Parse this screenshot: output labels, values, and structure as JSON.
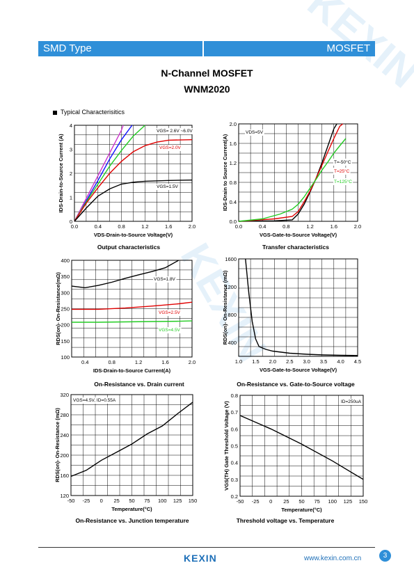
{
  "header": {
    "left": "SMD Type",
    "right": "MOSFET"
  },
  "title": {
    "line1": "N-Channel MOSFET",
    "line2": "WNM2020"
  },
  "section": "Typical  Characterisitics",
  "footer": {
    "logo": "KEXIN",
    "url": "www.kexin.com.cn",
    "page": "3"
  },
  "watermark": "KEXIN",
  "colors": {
    "banner": "#2f8fd8",
    "black": "#000000",
    "red": "#e00000",
    "green": "#22cc22",
    "blue": "#1010ff",
    "magenta": "#cc33cc"
  },
  "captions": {
    "c1": "Output characteristics",
    "c2": "Transfer characteristics",
    "c3": "On-Resistance vs. Drain current",
    "c4": "On-Resistance vs. Gate-to-Source voltage",
    "c5": "On-Resistance vs. Junction temperature",
    "c6": "Threshold voltage vs. Temperature"
  },
  "chart_data": [
    {
      "type": "line",
      "xlabel": "VDS-Drain-to-Source Voltage(V)",
      "ylabel": "IDS-Drain-to-Source Current (A)",
      "xlim": [
        0,
        2.0
      ],
      "ylim": [
        0,
        4
      ],
      "xticks": [
        "0.0",
        "0.4",
        "0.8",
        "1.2",
        "1.6",
        "2.0"
      ],
      "yticks": [
        "0",
        "1",
        "2",
        "3",
        "4"
      ],
      "series": [
        {
          "name": "VGS= 2.6V ~6.0V",
          "color": "#1010ff",
          "x": [
            0,
            0.2,
            0.4,
            0.6,
            0.8,
            0.98
          ],
          "y": [
            0,
            0.85,
            1.7,
            2.6,
            3.4,
            4
          ]
        },
        {
          "name": "",
          "color": "#cc33cc",
          "x": [
            0,
            0.2,
            0.4,
            0.6,
            0.8,
            0.83
          ],
          "y": [
            0,
            0.95,
            1.9,
            2.85,
            3.8,
            4
          ]
        },
        {
          "name": "",
          "color": "#22cc22",
          "x": [
            0,
            0.2,
            0.4,
            0.6,
            0.8,
            1.0,
            1.2
          ],
          "y": [
            0,
            0.8,
            1.55,
            2.3,
            2.95,
            3.55,
            4
          ]
        },
        {
          "name": "VGS=2.0V",
          "color": "#e00000",
          "x": [
            0,
            0.2,
            0.4,
            0.6,
            0.8,
            1.0,
            1.2,
            1.4,
            1.6,
            2.0
          ],
          "y": [
            0,
            0.75,
            1.4,
            2.0,
            2.5,
            2.9,
            3.15,
            3.3,
            3.38,
            3.4
          ]
        },
        {
          "name": "VGS=1.5V",
          "color": "#000000",
          "x": [
            0,
            0.2,
            0.4,
            0.6,
            0.8,
            1.0,
            1.2,
            1.6,
            2.0
          ],
          "y": [
            0,
            0.55,
            1.05,
            1.35,
            1.55,
            1.63,
            1.67,
            1.7,
            1.72
          ]
        }
      ]
    },
    {
      "type": "line",
      "xlabel": "VGS-Gate-to-Source Voltage(V)",
      "ylabel": "IDS-Drain to Source Current(A)",
      "xlim": [
        0,
        2.0
      ],
      "ylim": [
        0,
        2.0
      ],
      "xticks": [
        "0.0",
        "0.4",
        "0.8",
        "1.2",
        "1.6",
        "2.0"
      ],
      "yticks": [
        "0.0",
        "0.4",
        "0.8",
        "1.2",
        "1.6",
        "2.0"
      ],
      "annotation": "VDS=5V",
      "series": [
        {
          "name": "T=-50°C",
          "color": "#000000",
          "x": [
            0,
            0.6,
            0.9,
            1.0,
            1.1,
            1.2,
            1.3,
            1.4,
            1.5,
            1.6,
            1.65
          ],
          "y": [
            0,
            0.01,
            0.03,
            0.15,
            0.35,
            0.6,
            0.88,
            1.2,
            1.55,
            1.9,
            2.0
          ]
        },
        {
          "name": "T=25°C",
          "color": "#e00000",
          "x": [
            0,
            0.6,
            0.9,
            1.0,
            1.1,
            1.2,
            1.3,
            1.4,
            1.5,
            1.6,
            1.7,
            1.75
          ],
          "y": [
            0,
            0.05,
            0.1,
            0.2,
            0.4,
            0.62,
            0.88,
            1.15,
            1.43,
            1.7,
            1.95,
            2.0
          ]
        },
        {
          "name": "T=125°C",
          "color": "#22cc22",
          "x": [
            0,
            0.4,
            0.7,
            0.9,
            1.0,
            1.1,
            1.2,
            1.3,
            1.4,
            1.5,
            1.6,
            1.7,
            1.8
          ],
          "y": [
            0,
            0.05,
            0.15,
            0.25,
            0.35,
            0.5,
            0.68,
            0.86,
            1.05,
            1.22,
            1.4,
            1.55,
            1.7
          ]
        }
      ]
    },
    {
      "type": "line",
      "xlabel": "IDS-Drain-to-Source Current(A)",
      "ylabel": "RDS(on)- On-Resistance(mΩ)",
      "xlim": [
        0.2,
        2.0
      ],
      "ylim": [
        100,
        400
      ],
      "xticks": [
        "0.4",
        "0.8",
        "1.2",
        "1.6",
        "2.0"
      ],
      "yticks": [
        "100",
        "150",
        "200",
        "250",
        "300",
        "350",
        "400"
      ],
      "series": [
        {
          "name": "VGS=1.8V",
          "color": "#000000",
          "x": [
            0.2,
            0.4,
            0.6,
            0.8,
            1.0,
            1.2,
            1.4,
            1.6,
            1.8
          ],
          "y": [
            320,
            315,
            322,
            332,
            344,
            355,
            365,
            377,
            400
          ]
        },
        {
          "name": "VGS=2.5V",
          "color": "#e00000",
          "x": [
            0.2,
            0.6,
            1.0,
            1.4,
            1.8,
            2.0
          ],
          "y": [
            248,
            248,
            252,
            258,
            265,
            270
          ]
        },
        {
          "name": "VGS=4.5V",
          "color": "#22cc22",
          "x": [
            0.2,
            0.6,
            1.0,
            1.4,
            1.8,
            2.0
          ],
          "y": [
            208,
            208,
            209,
            210,
            211,
            212
          ]
        }
      ]
    },
    {
      "type": "line",
      "xlabel": "VGS-Gate-to-Source Voltage(V)",
      "ylabel": "RDS(on)- On-Resistance (mΩ)",
      "xlim": [
        1.0,
        4.5
      ],
      "ylim": [
        200,
        1600
      ],
      "xticks": [
        "1.0",
        "1.5",
        "2.0",
        "2.5",
        "3.0",
        "3.5",
        "4.0",
        "4.5"
      ],
      "yticks": [
        "400",
        "800",
        "1200",
        "1600"
      ],
      "series": [
        {
          "name": "",
          "color": "#000000",
          "x": [
            1.2,
            1.3,
            1.4,
            1.5,
            1.6,
            1.8,
            2.0,
            2.5,
            3.0,
            3.5,
            4.0,
            4.5
          ],
          "y": [
            1600,
            1100,
            700,
            450,
            340,
            300,
            275,
            245,
            230,
            220,
            215,
            212
          ]
        }
      ]
    },
    {
      "type": "line",
      "xlabel": "Temperature(°C)",
      "ylabel": "RDS(on)- On-Resistance (mΩ)",
      "xlim": [
        -50,
        150
      ],
      "ylim": [
        120,
        320
      ],
      "xticks": [
        "-50",
        "-25",
        "0",
        "25",
        "50",
        "75",
        "100",
        "125",
        "150"
      ],
      "yticks": [
        "120",
        "160",
        "200",
        "240",
        "280",
        "320"
      ],
      "annotation": "VGS=4.5V, ID=0.55A",
      "series": [
        {
          "name": "",
          "color": "#000000",
          "x": [
            -50,
            -25,
            0,
            25,
            50,
            75,
            100,
            125,
            150
          ],
          "y": [
            158,
            170,
            190,
            206,
            222,
            242,
            258,
            282,
            305
          ]
        }
      ]
    },
    {
      "type": "line",
      "xlabel": "Temperature(°C)",
      "ylabel": "VGS(TH) Gate Threshold Voltage (V)",
      "xlim": [
        -50,
        150
      ],
      "ylim": [
        0.2,
        0.8
      ],
      "xticks": [
        "-50",
        "-25",
        "0",
        "25",
        "50",
        "75",
        "100",
        "125",
        "150"
      ],
      "yticks": [
        "0.2",
        "0.3",
        "0.4",
        "0.5",
        "0.6",
        "0.7",
        "0.8"
      ],
      "annotation": "ID=250uA",
      "series": [
        {
          "name": "",
          "color": "#000000",
          "x": [
            -50,
            0,
            50,
            100,
            150
          ],
          "y": [
            0.68,
            0.6,
            0.51,
            0.41,
            0.3
          ]
        }
      ]
    }
  ]
}
